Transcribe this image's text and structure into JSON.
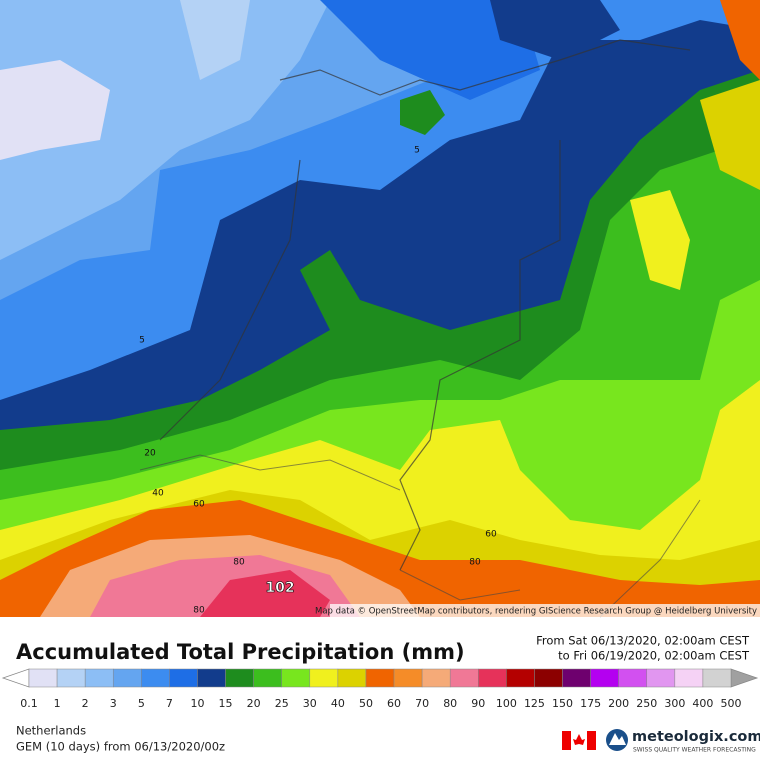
{
  "map": {
    "attribution": "Map data © OpenStreetMap contributors, rendering GIScience Research Group @ Heidelberg University",
    "contour_labels": [
      5,
      5,
      20,
      40,
      60,
      80,
      102,
      80,
      60,
      80
    ]
  },
  "legend": {
    "title": "Accumulated Total Precipitation (mm)",
    "from": "From Sat 06/13/2020, 02:00am CEST",
    "to": "to Fri 06/19/2020, 02:00am CEST",
    "levels": [
      0.1,
      1,
      2,
      3,
      5,
      7,
      10,
      15,
      20,
      25,
      30,
      40,
      50,
      60,
      70,
      80,
      90,
      100,
      125,
      150,
      175,
      200,
      250,
      300,
      400,
      500
    ],
    "colors": [
      "#e1e1f5",
      "#b4d2f5",
      "#8cbef5",
      "#64a5f0",
      "#3c8cf0",
      "#1e6ee6",
      "#123c8c",
      "#1e8c1e",
      "#3cbe1e",
      "#78e61e",
      "#f0f01e",
      "#dcd200",
      "#f06400",
      "#f58c28",
      "#f5aa78",
      "#f07896",
      "#e6325a",
      "#b40000",
      "#8c0000",
      "#6e006e",
      "#b400f0",
      "#d250f0",
      "#e196f0",
      "#f5d2f5",
      "#d2d2d2"
    ]
  },
  "footer": {
    "region": "Netherlands",
    "model": "GEM (10 days) from 06/13/2020/00z",
    "brand": "meteologix.com",
    "tagline": "SWISS QUALITY WEATHER FORECASTING"
  }
}
